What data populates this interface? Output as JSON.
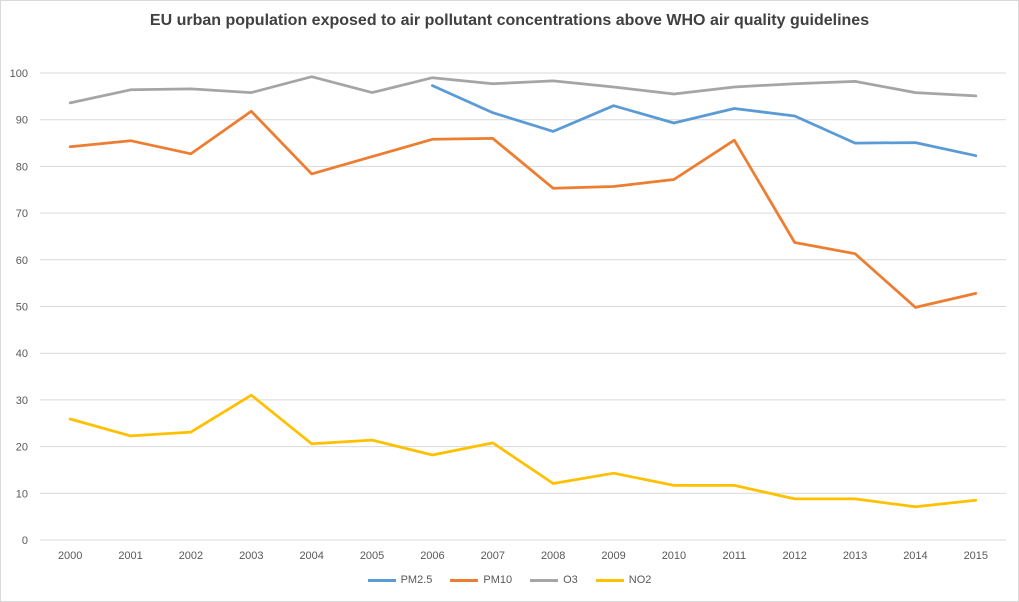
{
  "chart_data": {
    "type": "line",
    "title": "EU urban population exposed to air pollutant concentrations above WHO air quality guidelines",
    "xlabel": "",
    "ylabel": "",
    "categories": [
      "2000",
      "2001",
      "2002",
      "2003",
      "2004",
      "2005",
      "2006",
      "2007",
      "2008",
      "2009",
      "2010",
      "2011",
      "2012",
      "2013",
      "2014",
      "2015"
    ],
    "ylim": [
      0,
      100
    ],
    "yticks": [
      0,
      10,
      20,
      30,
      40,
      50,
      60,
      70,
      80,
      90,
      100
    ],
    "grid": true,
    "legend_position": "bottom",
    "series": [
      {
        "name": "PM2.5",
        "color": "#5B9BD5",
        "values": [
          null,
          null,
          null,
          null,
          null,
          null,
          97.3,
          91.5,
          87.5,
          93.0,
          89.3,
          92.4,
          90.8,
          85.0,
          85.1,
          82.3
        ]
      },
      {
        "name": "PM10",
        "color": "#ED7D31",
        "values": [
          84.2,
          85.5,
          82.7,
          91.8,
          78.4,
          82.1,
          85.8,
          86.0,
          75.3,
          75.7,
          77.2,
          85.6,
          63.7,
          61.3,
          49.8,
          52.8
        ]
      },
      {
        "name": "O3",
        "color": "#A5A5A5",
        "values": [
          93.6,
          96.4,
          96.6,
          95.8,
          99.2,
          95.8,
          99.0,
          97.7,
          98.3,
          97.0,
          95.5,
          97.0,
          97.7,
          98.2,
          95.8,
          95.1
        ]
      },
      {
        "name": "NO2",
        "color": "#FFC000",
        "values": [
          25.9,
          22.3,
          23.1,
          31.0,
          20.6,
          21.4,
          18.2,
          20.8,
          12.1,
          14.3,
          11.7,
          11.7,
          8.8,
          8.8,
          7.1,
          8.5
        ]
      }
    ]
  }
}
